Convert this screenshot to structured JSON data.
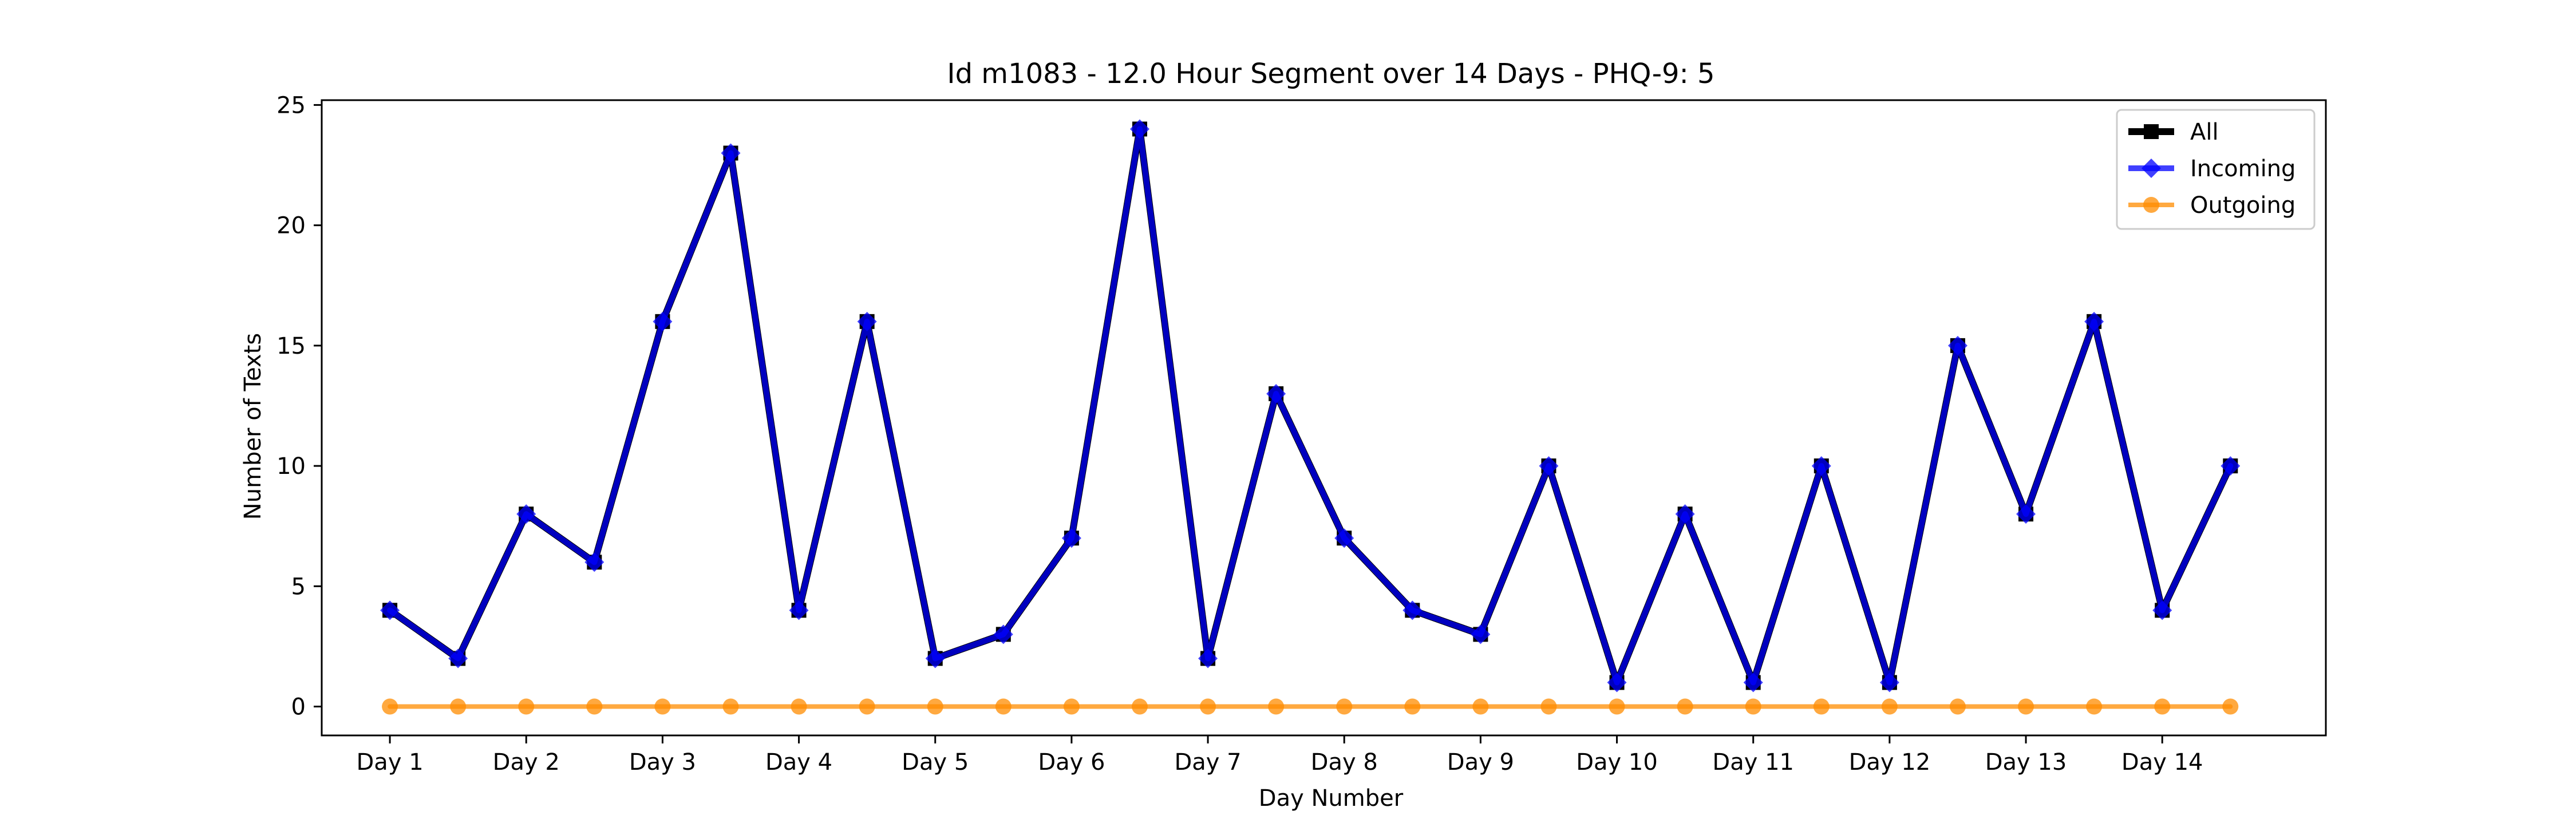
{
  "chart_data": {
    "type": "line",
    "title": "Id m1083 - 12.0 Hour Segment over 14 Days - PHQ-9: 5",
    "xlabel": "Day Number",
    "ylabel": "Number of Texts",
    "ylim": [
      -1.2,
      25.2
    ],
    "yticks": [
      0,
      5,
      10,
      15,
      20,
      25
    ],
    "xticks": [
      {
        "label": "Day 1",
        "x": 1
      },
      {
        "label": "Day 2",
        "x": 3
      },
      {
        "label": "Day 3",
        "x": 5
      },
      {
        "label": "Day 4",
        "x": 7
      },
      {
        "label": "Day 5",
        "x": 9
      },
      {
        "label": "Day 6",
        "x": 11
      },
      {
        "label": "Day 7",
        "x": 13
      },
      {
        "label": "Day 8",
        "x": 15
      },
      {
        "label": "Day 9",
        "x": 17
      },
      {
        "label": "Day 10",
        "x": 19
      },
      {
        "label": "Day 11",
        "x": 21
      },
      {
        "label": "Day 12",
        "x": 23
      },
      {
        "label": "Day 13",
        "x": 25
      },
      {
        "label": "Day 14",
        "x": 27
      }
    ],
    "x": [
      1,
      2,
      3,
      4,
      5,
      6,
      7,
      8,
      9,
      10,
      11,
      12,
      13,
      14,
      15,
      16,
      17,
      18,
      19,
      20,
      21,
      22,
      23,
      24,
      25,
      26,
      27,
      28
    ],
    "series": [
      {
        "name": "All",
        "color": "#000000",
        "marker": "square",
        "values": [
          4,
          2,
          8,
          6,
          16,
          23,
          4,
          16,
          2,
          3,
          7,
          24,
          2,
          13,
          7,
          4,
          3,
          10,
          1,
          8,
          1,
          10,
          1,
          15,
          8,
          16,
          4,
          10
        ]
      },
      {
        "name": "Incoming",
        "color": "#0000ff",
        "marker": "diamond",
        "values": [
          4,
          2,
          8,
          6,
          16,
          23,
          4,
          16,
          2,
          3,
          7,
          24,
          2,
          13,
          7,
          4,
          3,
          10,
          1,
          8,
          1,
          10,
          1,
          15,
          8,
          16,
          4,
          10
        ]
      },
      {
        "name": "Outgoing",
        "color": "#ff8c00",
        "marker": "circle",
        "values": [
          0,
          0,
          0,
          0,
          0,
          0,
          0,
          0,
          0,
          0,
          0,
          0,
          0,
          0,
          0,
          0,
          0,
          0,
          0,
          0,
          0,
          0,
          0,
          0,
          0,
          0,
          0,
          0
        ]
      }
    ],
    "legend_position": "top-right",
    "grid": false
  }
}
